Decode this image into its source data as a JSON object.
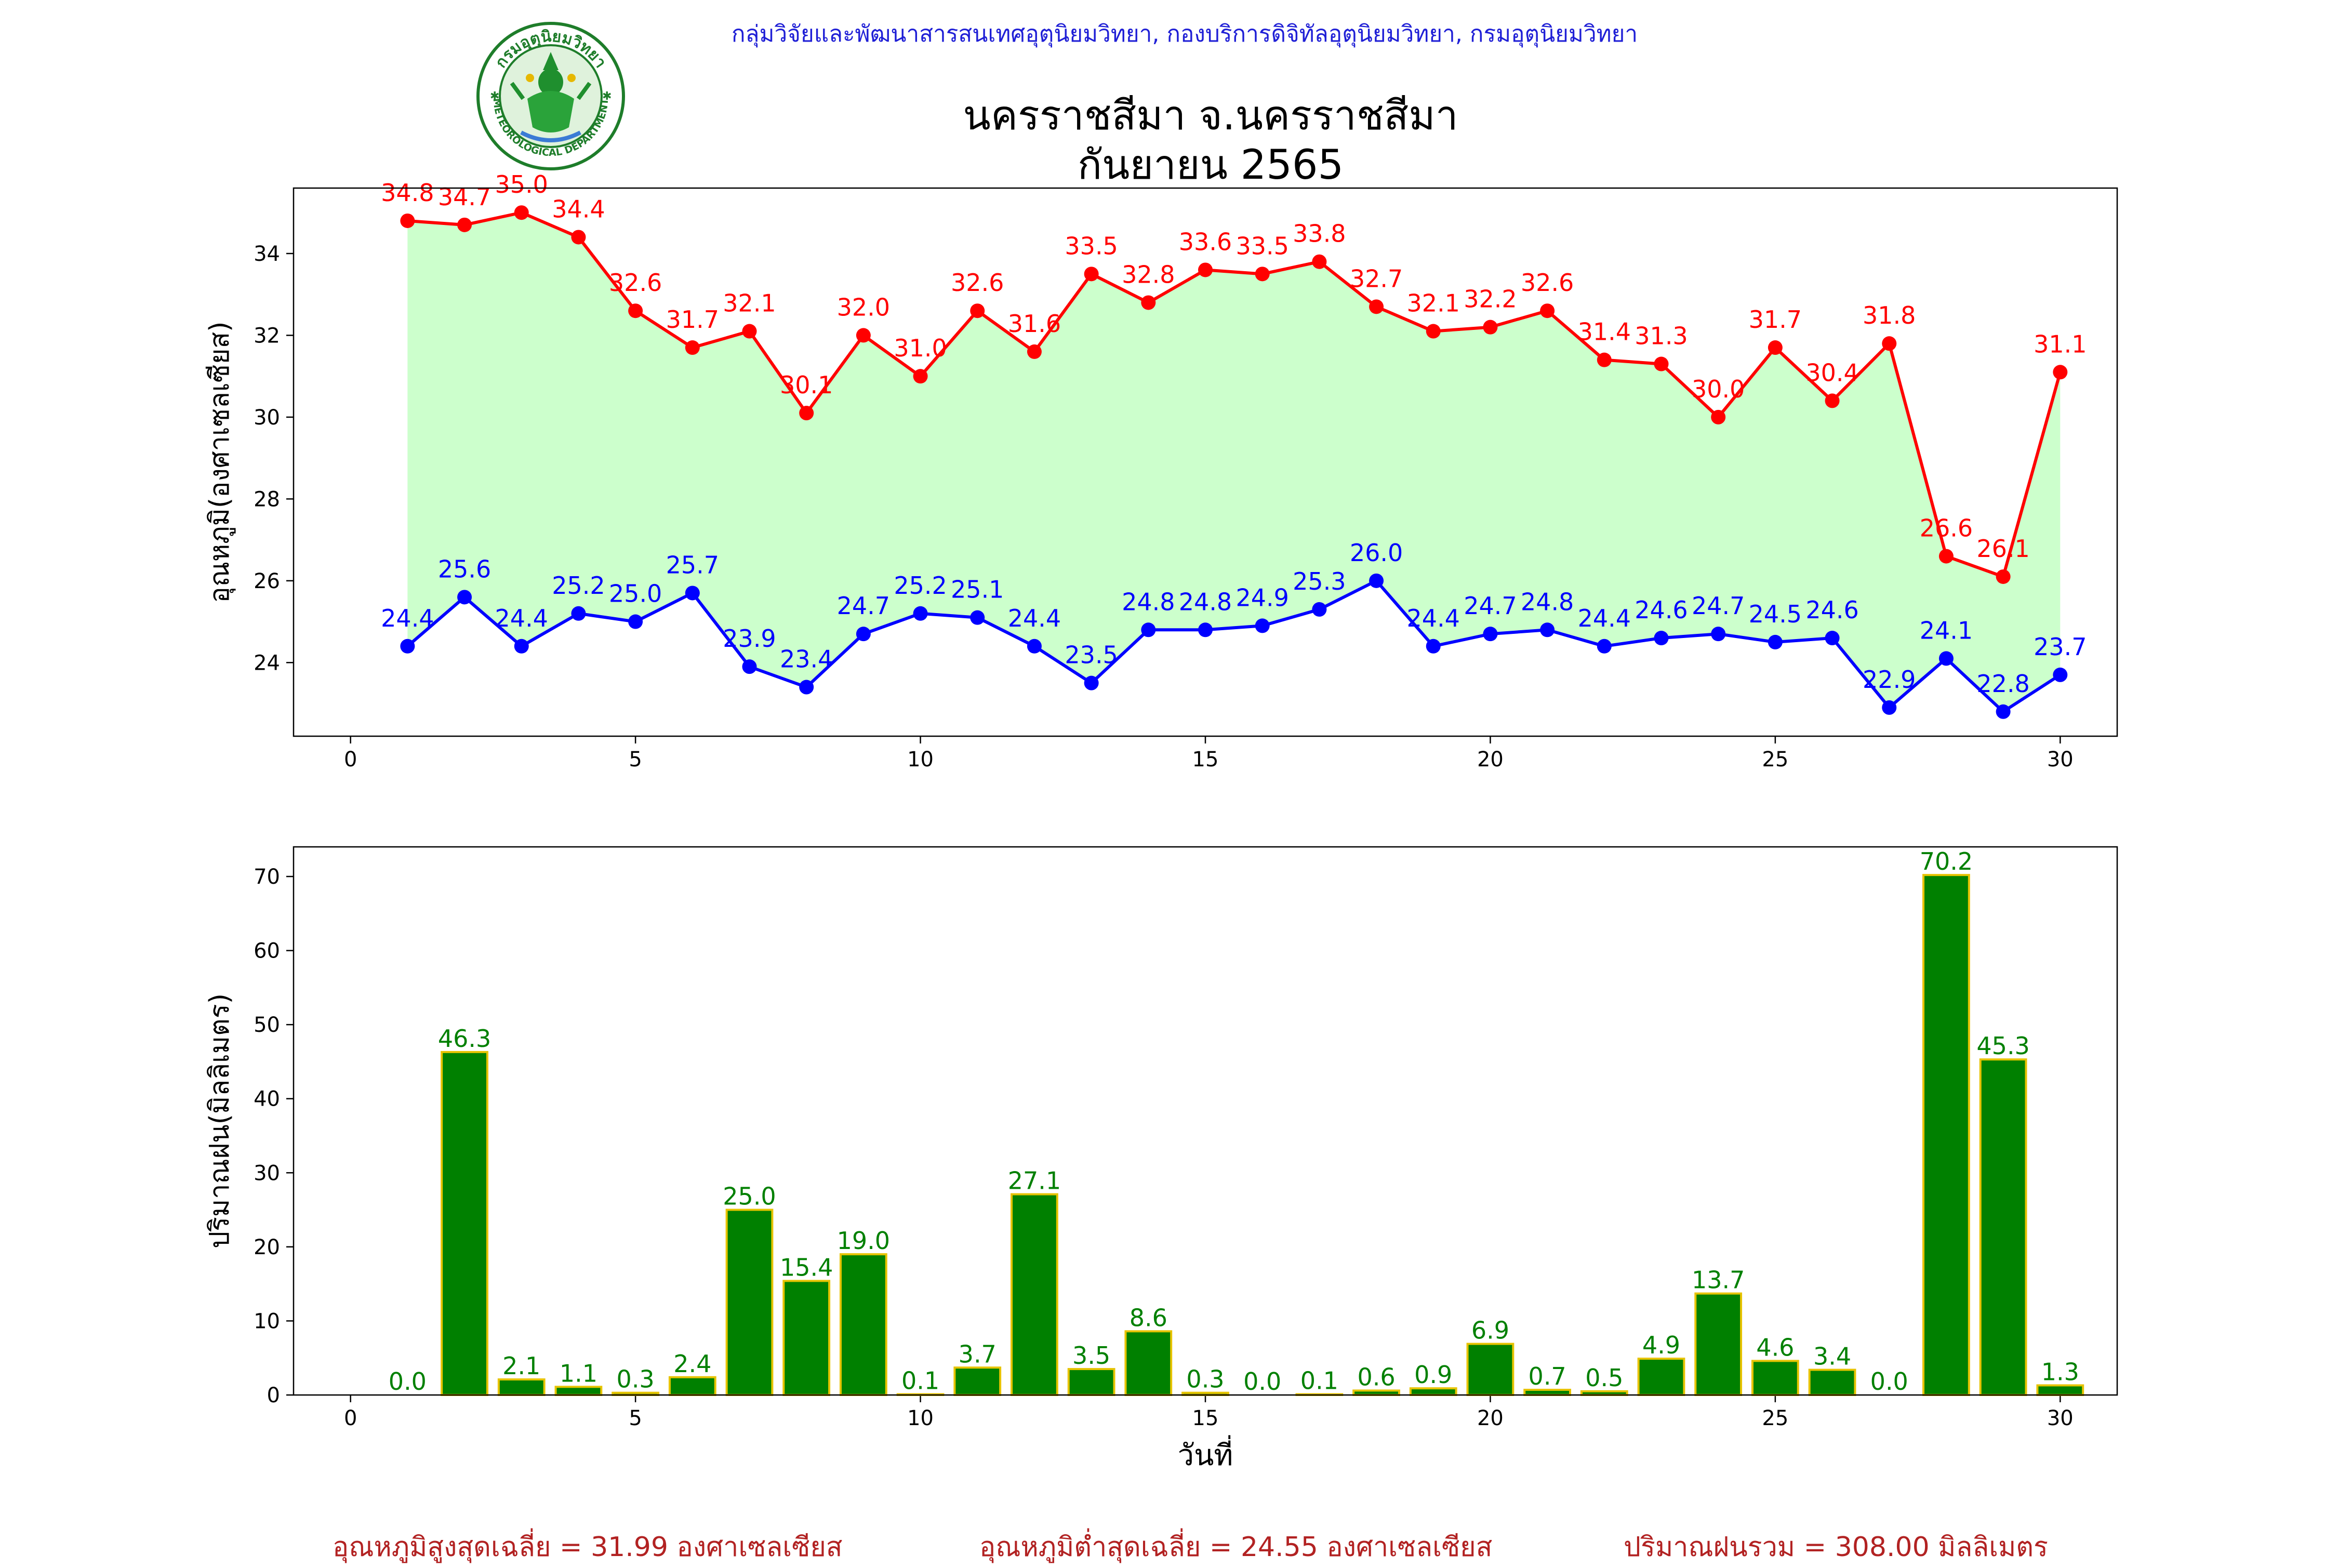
{
  "header": {
    "credit": "กลุ่มวิจัยและพัฒนาสารสนเทศอุตุนิยมวิทยา, กองบริการดิจิทัลอุตุนิยมวิทยา, กรมอุตุนิยมวิทยา",
    "title_line1": "นครราชสีมา จ.นครราชสีมา",
    "title_line2": "กันยายน 2565",
    "logo_text_top": "กรมอุตุนิยมวิทยา",
    "logo_text_bottom": "METEOROLOGICAL DEPARTMENT"
  },
  "colors": {
    "max_line": "#ff0000",
    "min_line": "#0000ff",
    "fill": "#ccffcc",
    "bar_fill": "#008000",
    "bar_edge": "#e6c300",
    "bar_label": "#008000",
    "summary": "#b22222",
    "credit": "#1f1fd6"
  },
  "chart_data": [
    {
      "type": "line",
      "ylabel": "อุณหภูมิ(องศาเซลเซียส)",
      "xlabel": "",
      "xlim": [
        -1,
        31
      ],
      "ylim": [
        22.2,
        35.6
      ],
      "xticks": [
        0,
        5,
        10,
        15,
        20,
        25,
        30
      ],
      "yticks": [
        24,
        26,
        28,
        30,
        32,
        34
      ],
      "fill_between": true,
      "x": [
        1,
        2,
        3,
        4,
        5,
        6,
        7,
        8,
        9,
        10,
        11,
        12,
        13,
        14,
        15,
        16,
        17,
        18,
        19,
        20,
        21,
        22,
        23,
        24,
        25,
        26,
        27,
        28,
        29,
        30
      ],
      "series": [
        {
          "key": "max",
          "values": [
            34.8,
            34.7,
            35.0,
            34.4,
            32.6,
            31.7,
            32.1,
            30.1,
            32.0,
            31.0,
            32.6,
            31.6,
            33.5,
            32.8,
            33.6,
            33.5,
            33.8,
            32.7,
            32.1,
            32.2,
            32.6,
            31.4,
            31.3,
            30.0,
            31.7,
            30.4,
            31.8,
            26.6,
            26.1,
            31.1
          ]
        },
        {
          "key": "min",
          "values": [
            24.4,
            25.6,
            24.4,
            25.2,
            25.0,
            25.7,
            23.9,
            23.4,
            24.7,
            25.2,
            25.1,
            24.4,
            23.5,
            24.8,
            24.8,
            24.9,
            25.3,
            26.0,
            24.4,
            24.7,
            24.8,
            24.4,
            24.6,
            24.7,
            24.5,
            24.6,
            22.9,
            24.1,
            22.8,
            23.7
          ]
        }
      ]
    },
    {
      "type": "bar",
      "ylabel": "ปริมาณฝน(มิลลิเมตร)",
      "xlabel": "วันที่",
      "xlim": [
        -1,
        31
      ],
      "ylim": [
        0,
        74
      ],
      "xticks": [
        0,
        5,
        10,
        15,
        20,
        25,
        30
      ],
      "yticks": [
        0,
        10,
        20,
        30,
        40,
        50,
        60,
        70
      ],
      "x": [
        1,
        2,
        3,
        4,
        5,
        6,
        7,
        8,
        9,
        10,
        11,
        12,
        13,
        14,
        15,
        16,
        17,
        18,
        19,
        20,
        21,
        22,
        23,
        24,
        25,
        26,
        27,
        28,
        29,
        30
      ],
      "values": [
        0.0,
        46.3,
        2.1,
        1.1,
        0.3,
        2.4,
        25.0,
        15.4,
        19.0,
        0.1,
        3.7,
        27.1,
        3.5,
        8.6,
        0.3,
        0.0,
        0.1,
        0.6,
        0.9,
        6.9,
        0.7,
        0.5,
        4.9,
        13.7,
        4.6,
        3.4,
        0.0,
        70.2,
        45.3,
        1.3
      ]
    }
  ],
  "summary": {
    "max_avg": "อุณหภูมิสูงสุดเฉลี่ย = 31.99 องศาเซลเซียส",
    "min_avg": "อุณหภูมิต่ำสุดเฉลี่ย = 24.55 องศาเซลเซียส",
    "rain_total": "ปริมาณฝนรวม = 308.00 มิลลิเมตร"
  }
}
